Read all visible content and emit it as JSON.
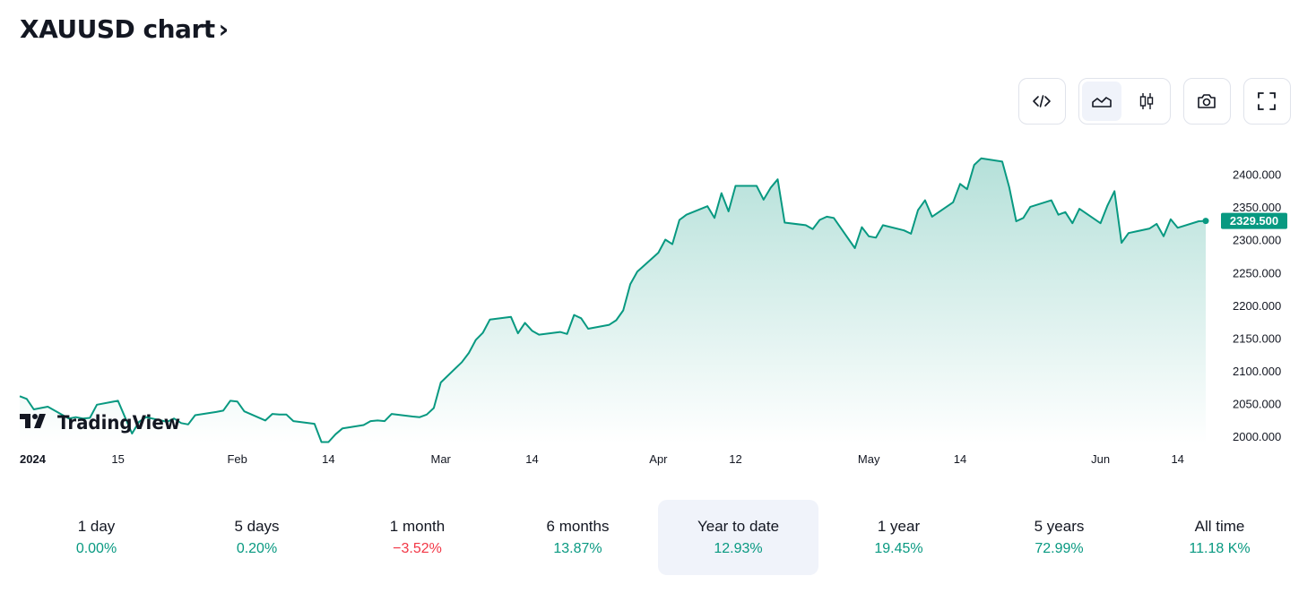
{
  "header": {
    "title": "XAUUSD chart",
    "chevron": "›"
  },
  "toolbar": {
    "embed_icon": "code-icon",
    "chart_types": [
      "area-chart-icon",
      "candlestick-chart-icon"
    ],
    "active_chart_type": "area",
    "snapshot_icon": "camera-icon",
    "fullscreen_icon": "fullscreen-icon"
  },
  "watermark": {
    "logo": "TradingView"
  },
  "colors": {
    "line": "#089981",
    "positive": "#089981",
    "negative": "#f23645",
    "price_label_bg": "#089981"
  },
  "chart_data": {
    "type": "area",
    "symbol": "XAUUSD",
    "y_ticks": [
      "2000.000",
      "2050.000",
      "2100.000",
      "2150.000",
      "2200.000",
      "2250.000",
      "2300.000",
      "2350.000",
      "2400.000"
    ],
    "ylim": [
      1990,
      2437
    ],
    "x_labels": [
      {
        "date": "2024-01-02",
        "label": "2024",
        "bold": true
      },
      {
        "date": "2024-01-15",
        "label": "15"
      },
      {
        "date": "2024-02-01",
        "label": "Feb"
      },
      {
        "date": "2024-02-14",
        "label": "14"
      },
      {
        "date": "2024-03-01",
        "label": "Mar"
      },
      {
        "date": "2024-03-14",
        "label": "14"
      },
      {
        "date": "2024-04-01",
        "label": "Apr"
      },
      {
        "date": "2024-04-12",
        "label": "12"
      },
      {
        "date": "2024-05-01",
        "label": "May"
      },
      {
        "date": "2024-05-14",
        "label": "14"
      },
      {
        "date": "2024-06-03",
        "label": "Jun"
      },
      {
        "date": "2024-06-14",
        "label": "14"
      }
    ],
    "last_price": "2329.500",
    "points": [
      [
        "2024-01-01",
        2062
      ],
      [
        "2024-01-02",
        2058
      ],
      [
        "2024-01-03",
        2042
      ],
      [
        "2024-01-04",
        2044
      ],
      [
        "2024-01-05",
        2046
      ],
      [
        "2024-01-08",
        2028
      ],
      [
        "2024-01-09",
        2030
      ],
      [
        "2024-01-10",
        2028
      ],
      [
        "2024-01-11",
        2029
      ],
      [
        "2024-01-12",
        2049
      ],
      [
        "2024-01-15",
        2055
      ],
      [
        "2024-01-16",
        2030
      ],
      [
        "2024-01-17",
        2005
      ],
      [
        "2024-01-18",
        2023
      ],
      [
        "2024-01-19",
        2030
      ],
      [
        "2024-01-22",
        2023
      ],
      [
        "2024-01-23",
        2028
      ],
      [
        "2024-01-24",
        2021
      ],
      [
        "2024-01-25",
        2019
      ],
      [
        "2024-01-26",
        2033
      ],
      [
        "2024-01-29",
        2038
      ],
      [
        "2024-01-30",
        2040
      ],
      [
        "2024-01-31",
        2055
      ],
      [
        "2024-02-01",
        2054
      ],
      [
        "2024-02-02",
        2039
      ],
      [
        "2024-02-05",
        2025
      ],
      [
        "2024-02-06",
        2035
      ],
      [
        "2024-02-07",
        2034
      ],
      [
        "2024-02-08",
        2034
      ],
      [
        "2024-02-09",
        2024
      ],
      [
        "2024-02-12",
        2020
      ],
      [
        "2024-02-13",
        1992
      ],
      [
        "2024-02-14",
        1992
      ],
      [
        "2024-02-15",
        2004
      ],
      [
        "2024-02-16",
        2013
      ],
      [
        "2024-02-19",
        2018
      ],
      [
        "2024-02-20",
        2024
      ],
      [
        "2024-02-21",
        2025
      ],
      [
        "2024-02-22",
        2024
      ],
      [
        "2024-02-23",
        2035
      ],
      [
        "2024-02-26",
        2031
      ],
      [
        "2024-02-27",
        2030
      ],
      [
        "2024-02-28",
        2034
      ],
      [
        "2024-02-29",
        2044
      ],
      [
        "2024-03-01",
        2083
      ],
      [
        "2024-03-04",
        2114
      ],
      [
        "2024-03-05",
        2128
      ],
      [
        "2024-03-06",
        2148
      ],
      [
        "2024-03-07",
        2159
      ],
      [
        "2024-03-08",
        2179
      ],
      [
        "2024-03-11",
        2183
      ],
      [
        "2024-03-12",
        2158
      ],
      [
        "2024-03-13",
        2174
      ],
      [
        "2024-03-14",
        2162
      ],
      [
        "2024-03-15",
        2156
      ],
      [
        "2024-03-18",
        2160
      ],
      [
        "2024-03-19",
        2157
      ],
      [
        "2024-03-20",
        2186
      ],
      [
        "2024-03-21",
        2181
      ],
      [
        "2024-03-22",
        2165
      ],
      [
        "2024-03-25",
        2171
      ],
      [
        "2024-03-26",
        2178
      ],
      [
        "2024-03-27",
        2193
      ],
      [
        "2024-03-28",
        2233
      ],
      [
        "2024-03-29",
        2252
      ],
      [
        "2024-04-01",
        2281
      ],
      [
        "2024-04-02",
        2301
      ],
      [
        "2024-04-03",
        2294
      ],
      [
        "2024-04-04",
        2331
      ],
      [
        "2024-04-05",
        2339
      ],
      [
        "2024-04-08",
        2352
      ],
      [
        "2024-04-09",
        2334
      ],
      [
        "2024-04-10",
        2372
      ],
      [
        "2024-04-11",
        2344
      ],
      [
        "2024-04-12",
        2383
      ],
      [
        "2024-04-15",
        2383
      ],
      [
        "2024-04-16",
        2362
      ],
      [
        "2024-04-17",
        2380
      ],
      [
        "2024-04-18",
        2393
      ],
      [
        "2024-04-19",
        2327
      ],
      [
        "2024-04-22",
        2323
      ],
      [
        "2024-04-23",
        2317
      ],
      [
        "2024-04-24",
        2331
      ],
      [
        "2024-04-25",
        2336
      ],
      [
        "2024-04-26",
        2334
      ],
      [
        "2024-04-29",
        2288
      ],
      [
        "2024-04-30",
        2320
      ],
      [
        "2024-05-01",
        2306
      ],
      [
        "2024-05-02",
        2304
      ],
      [
        "2024-05-03",
        2323
      ],
      [
        "2024-05-06",
        2315
      ],
      [
        "2024-05-07",
        2310
      ],
      [
        "2024-05-08",
        2346
      ],
      [
        "2024-05-09",
        2361
      ],
      [
        "2024-05-10",
        2336
      ],
      [
        "2024-05-13",
        2358
      ],
      [
        "2024-05-14",
        2386
      ],
      [
        "2024-05-15",
        2378
      ],
      [
        "2024-05-16",
        2415
      ],
      [
        "2024-05-17",
        2425
      ],
      [
        "2024-05-20",
        2420
      ],
      [
        "2024-05-21",
        2381
      ],
      [
        "2024-05-22",
        2329
      ],
      [
        "2024-05-23",
        2334
      ],
      [
        "2024-05-24",
        2351
      ],
      [
        "2024-05-27",
        2361
      ],
      [
        "2024-05-28",
        2339
      ],
      [
        "2024-05-29",
        2343
      ],
      [
        "2024-05-30",
        2326
      ],
      [
        "2024-05-31",
        2348
      ],
      [
        "2024-06-03",
        2326
      ],
      [
        "2024-06-04",
        2353
      ],
      [
        "2024-06-05",
        2375
      ],
      [
        "2024-06-06",
        2296
      ],
      [
        "2024-06-07",
        2311
      ],
      [
        "2024-06-10",
        2318
      ],
      [
        "2024-06-11",
        2325
      ],
      [
        "2024-06-12",
        2306
      ],
      [
        "2024-06-13",
        2332
      ],
      [
        "2024-06-14",
        2319
      ],
      [
        "2024-06-17",
        2329
      ],
      [
        "2024-06-18",
        2329.5
      ]
    ]
  },
  "periods": [
    {
      "label": "1 day",
      "value": "0.00%",
      "direction": "positive"
    },
    {
      "label": "5 days",
      "value": "0.20%",
      "direction": "positive"
    },
    {
      "label": "1 month",
      "value": "−3.52%",
      "direction": "negative"
    },
    {
      "label": "6 months",
      "value": "13.87%",
      "direction": "positive"
    },
    {
      "label": "Year to date",
      "value": "12.93%",
      "direction": "positive",
      "active": true
    },
    {
      "label": "1 year",
      "value": "19.45%",
      "direction": "positive"
    },
    {
      "label": "5 years",
      "value": "72.99%",
      "direction": "positive"
    },
    {
      "label": "All time",
      "value": "11.18 K%",
      "direction": "positive"
    }
  ]
}
